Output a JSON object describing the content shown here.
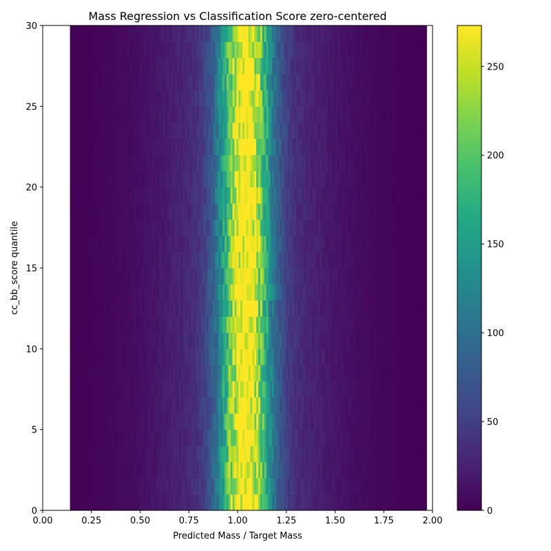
{
  "chart_data": {
    "type": "heatmap",
    "title": "Mass Regression vs Classification Score zero-centered",
    "xlabel": "Predicted Mass / Target Mass",
    "ylabel": "cc_bb_score quantile",
    "xlim": [
      0.0,
      2.0
    ],
    "ylim": [
      0,
      30
    ],
    "x_ticks": [
      "0.00",
      "0.25",
      "0.50",
      "0.75",
      "1.00",
      "1.25",
      "1.50",
      "1.75",
      "2.00"
    ],
    "y_ticks": [
      "0",
      "5",
      "10",
      "15",
      "20",
      "25",
      "30"
    ],
    "x_data_range": [
      0.14,
      1.97
    ],
    "x_bins": 180,
    "y_bins": 30,
    "colormap": "viridis",
    "colorbar": {
      "min": 0,
      "max": 273,
      "ticks": [
        "0",
        "50",
        "100",
        "150",
        "200",
        "250"
      ]
    },
    "distribution": {
      "peak_center": 1.04,
      "peak_width": 0.09,
      "peak_value": 250,
      "tail_width": 0.32,
      "tail_value": 45,
      "hotspots": [
        {
          "x": 1.04,
          "y": 25,
          "value": 273
        },
        {
          "x": 1.05,
          "y": 20,
          "value": 268
        },
        {
          "x": 1.06,
          "y": 13,
          "value": 255
        },
        {
          "x": 1.06,
          "y": 5,
          "value": 255
        }
      ]
    },
    "grid": false,
    "legend": "none"
  }
}
